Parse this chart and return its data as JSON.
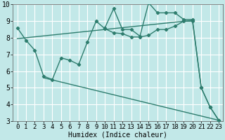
{
  "bg_color": "#c2e8e8",
  "grid_color": "#ffffff",
  "line_color": "#2e7d6e",
  "xlabel": "Humidex (Indice chaleur)",
  "xlim": [
    -0.5,
    23.5
  ],
  "ylim": [
    3,
    10
  ],
  "xticks": [
    0,
    1,
    2,
    3,
    4,
    5,
    6,
    7,
    8,
    9,
    10,
    11,
    12,
    13,
    14,
    15,
    16,
    17,
    18,
    19,
    20,
    21,
    22,
    23
  ],
  "yticks": [
    3,
    4,
    5,
    6,
    7,
    8,
    9,
    10
  ],
  "line1_x": [
    0,
    1,
    2,
    3,
    4,
    5,
    6,
    7,
    8,
    9,
    10,
    11,
    12,
    13,
    14,
    15,
    16,
    17,
    18,
    19,
    20,
    21,
    22,
    23
  ],
  "line1_y": [
    8.6,
    7.85,
    7.25,
    5.7,
    5.5,
    6.8,
    6.65,
    6.4,
    7.75,
    9.0,
    8.55,
    8.3,
    8.25,
    8.05,
    8.05,
    8.15,
    8.5,
    8.5,
    8.7,
    9.0,
    9.0,
    5.0,
    3.85,
    3.05
  ],
  "line2_x": [
    0,
    20
  ],
  "line2_y": [
    7.95,
    9.05
  ],
  "line3_x": [
    3,
    23
  ],
  "line3_y": [
    5.6,
    3.05
  ],
  "line4_x": [
    10,
    11,
    12,
    13,
    14,
    15,
    16,
    17,
    18,
    19,
    20,
    21,
    22,
    23
  ],
  "line4_y": [
    8.6,
    9.75,
    8.5,
    8.5,
    8.1,
    10.1,
    9.5,
    9.5,
    9.5,
    9.1,
    9.1,
    5.0,
    3.85,
    3.05
  ]
}
